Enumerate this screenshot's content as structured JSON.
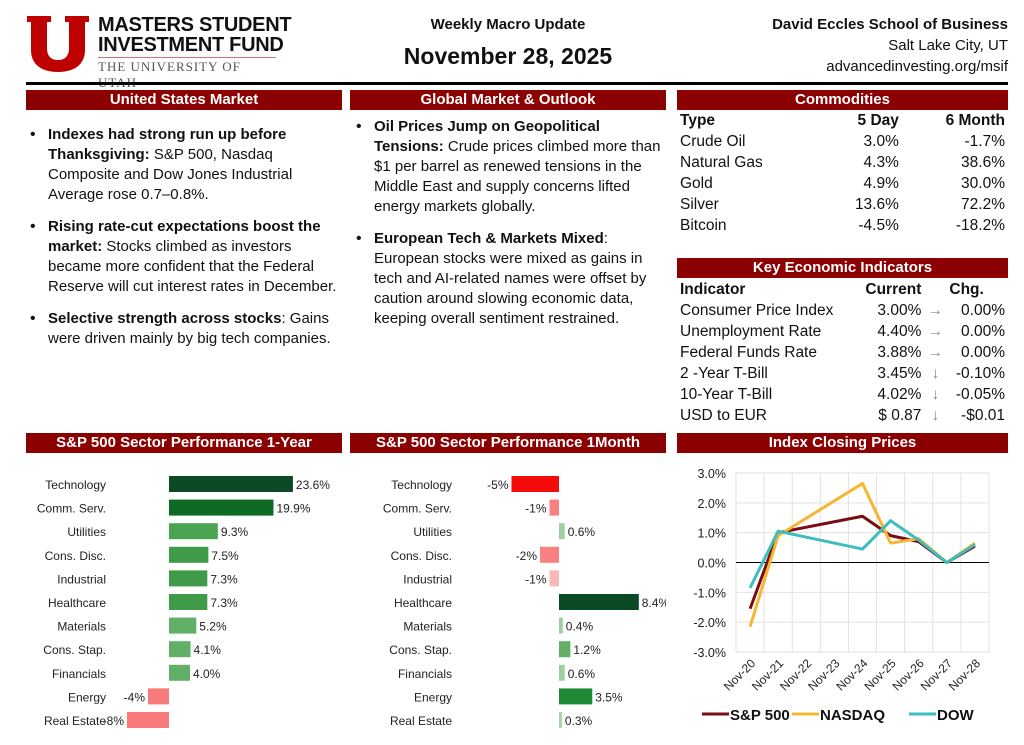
{
  "header": {
    "logo_line1": "MASTERS STUDENT",
    "logo_line2": "INVESTMENT FUND",
    "logo_line3": "THE UNIVERSITY OF UTAH",
    "subtitle": "Weekly Macro Update",
    "date": "November 28, 2025",
    "school": "David Eccles School of Business",
    "city": "Salt Lake City, UT",
    "url": "advancedinvesting.org/msif"
  },
  "us": {
    "title": "United States Market",
    "bullets": [
      {
        "bold": "Indexes had strong run up before Thanksgiving:",
        "text": " S&P 500, Nasdaq Composite and Dow Jones Industrial Average rose 0.7–0.8%."
      },
      {
        "bold": "Rising rate-cut expectations boost the market:",
        "text": " Stocks climbed as investors became more confident that the Federal Reserve will cut interest rates in December."
      },
      {
        "bold": "Selective strength across stocks",
        "text": ": Gains were driven mainly by big tech companies."
      }
    ]
  },
  "global": {
    "title": "Global Market & Outlook",
    "bullets": [
      {
        "bold": "Oil Prices Jump on Geopolitical Tensions:",
        "text": " Crude prices climbed more than $1 per barrel as renewed tensions in the Middle East and supply concerns lifted energy markets globally."
      },
      {
        "bold": "European Tech & Markets Mixed",
        "text": ": European stocks were mixed as gains in tech and AI-related names were offset by caution around slowing economic data, keeping overall sentiment restrained."
      }
    ]
  },
  "commodities": {
    "title": "Commodities",
    "headers": [
      "Type",
      "5 Day",
      "6 Month"
    ],
    "rows": [
      [
        "Crude Oil",
        "3.0%",
        "-1.7%"
      ],
      [
        "Natural Gas",
        "4.3%",
        "38.6%"
      ],
      [
        "Gold",
        "4.9%",
        "30.0%"
      ],
      [
        "Silver",
        "13.6%",
        "72.2%"
      ],
      [
        "Bitcoin",
        "-4.5%",
        "-18.2%"
      ]
    ]
  },
  "indicators": {
    "title": "Key Economic Indicators",
    "headers": [
      "Indicator",
      "Current",
      "Chg."
    ],
    "rows": [
      [
        "Consumer Price Index",
        "3.00%",
        "→",
        "0.00%"
      ],
      [
        "Unemployment Rate",
        "4.40%",
        "→",
        "0.00%"
      ],
      [
        "Federal Funds Rate",
        "3.88%",
        "→",
        "0.00%"
      ],
      [
        "2 -Year T-Bill",
        "3.45%",
        "↓",
        "-0.10%"
      ],
      [
        "10-Year T-Bill",
        "4.02%",
        "↓",
        "-0.05%"
      ],
      [
        "USD to EUR",
        "$ 0.87",
        "↓",
        "-$0.01"
      ]
    ]
  },
  "chart_data": [
    {
      "type": "bar",
      "title": "S&P 500 Sector Performance 1-Year",
      "categories": [
        "Technology",
        "Comm. Serv.",
        "Utilities",
        "Cons. Disc.",
        "Industrial",
        "Healthcare",
        "Materials",
        "Cons. Stap.",
        "Financials",
        "Energy",
        "Real Estate"
      ],
      "values": [
        23.6,
        19.9,
        9.3,
        7.5,
        7.3,
        7.3,
        5.2,
        4.1,
        4.0,
        -4,
        -8
      ],
      "labels": [
        "23.6%",
        "19.9%",
        "9.3%",
        "7.5%",
        "7.3%",
        "7.3%",
        "5.2%",
        "4.1%",
        "4.0%",
        "-4%",
        "-8%"
      ],
      "colors": [
        "#0b4a25",
        "#0e6b26",
        "#4aa552",
        "#3f9b48",
        "#3f9b48",
        "#3f9b48",
        "#62b068",
        "#62b068",
        "#62b068",
        "#f87a7a",
        "#f87a7a"
      ]
    },
    {
      "type": "bar",
      "title": "S&P 500 Sector Performance 1Month",
      "categories": [
        "Technology",
        "Comm. Serv.",
        "Utilities",
        "Cons. Disc.",
        "Industrial",
        "Healthcare",
        "Materials",
        "Cons. Stap.",
        "Financials",
        "Energy",
        "Real Estate"
      ],
      "values": [
        -5,
        -1,
        0.6,
        -2,
        -1,
        8.4,
        0.4,
        1.2,
        0.6,
        3.5,
        0.3
      ],
      "labels": [
        "-5%",
        "-1%",
        "0.6%",
        "-2%",
        "-1%",
        "8.4%",
        "0.4%",
        "1.2%",
        "0.6%",
        "3.5%",
        "0.3%"
      ],
      "colors": [
        "#f50a0a",
        "#f88080",
        "#9fcf9f",
        "#f88080",
        "#f8b8b8",
        "#0b4a25",
        "#9fcf9f",
        "#62b068",
        "#9fcf9f",
        "#1f8a35",
        "#a8d4a8"
      ]
    },
    {
      "type": "line",
      "title": "Index Closing Prices",
      "categories": [
        "Nov-20",
        "Nov-21",
        "Nov-22",
        "Nov-23",
        "Nov-24",
        "Nov-25",
        "Nov-26",
        "Nov-27",
        "Nov-28"
      ],
      "ylim": [
        -3,
        3
      ],
      "yticks": [
        "3.0%",
        "2.0%",
        "1.0%",
        "0.0%",
        "-1.0%",
        "-2.0%",
        "-3.0%"
      ],
      "grid": true,
      "legend": "bottom",
      "series": [
        {
          "name": "S&P 500",
          "color": "#7a0c12",
          "points": [
            [
              0,
              -1.55
            ],
            [
              1,
              1.0
            ],
            [
              4,
              1.55
            ],
            [
              5,
              0.9
            ],
            [
              6,
              0.7
            ],
            [
              7,
              0.0
            ],
            [
              8,
              0.55
            ]
          ]
        },
        {
          "name": "NASDAQ",
          "color": "#f5b731",
          "points": [
            [
              0,
              -2.15
            ],
            [
              1,
              0.9
            ],
            [
              4,
              2.65
            ],
            [
              5,
              0.65
            ],
            [
              6,
              0.8
            ],
            [
              7,
              0.0
            ],
            [
              8,
              0.65
            ]
          ]
        },
        {
          "name": "DOW",
          "color": "#3dbdbd",
          "points": [
            [
              0,
              -0.85
            ],
            [
              1,
              1.05
            ],
            [
              4,
              0.45
            ],
            [
              5,
              1.4
            ],
            [
              6,
              0.75
            ],
            [
              7,
              0.0
            ],
            [
              8,
              0.6
            ]
          ]
        }
      ]
    }
  ]
}
